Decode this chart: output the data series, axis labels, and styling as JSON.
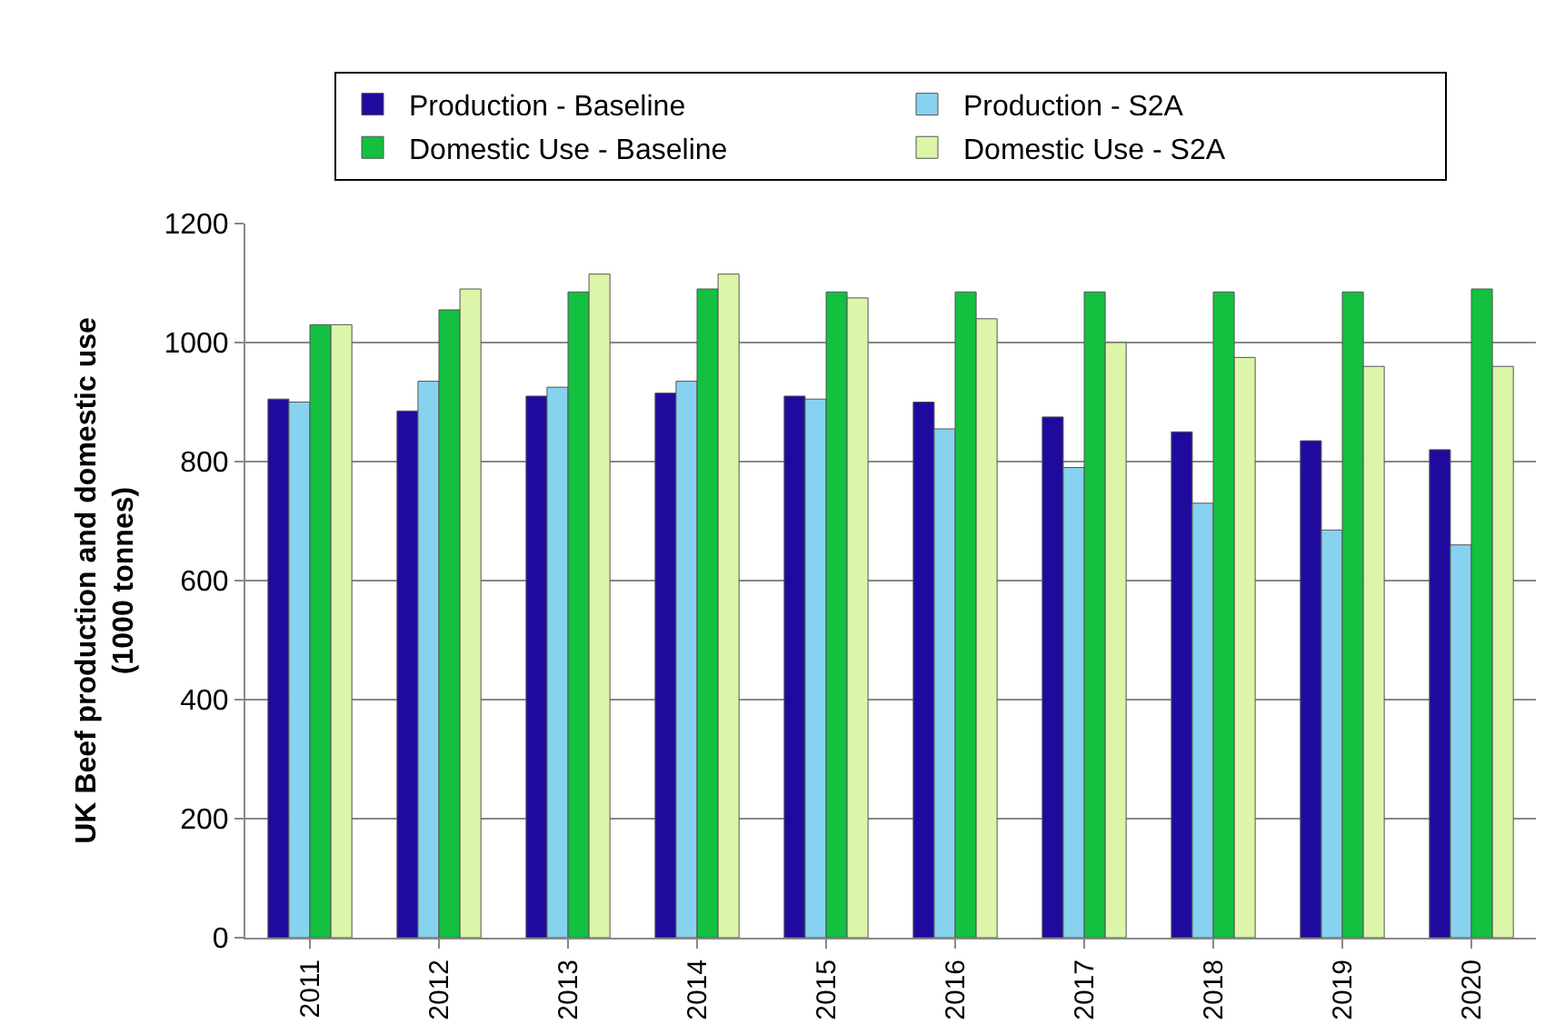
{
  "chart_data": {
    "type": "bar",
    "ylabel": "UK Beef production and domestic use\n(1000 tonnes)",
    "categories": [
      "2011",
      "2012",
      "2013",
      "2014",
      "2015",
      "2016",
      "2017",
      "2018",
      "2019",
      "2020"
    ],
    "series": [
      {
        "name": "Production - Baseline",
        "color": "#1f0a9e",
        "values": [
          905,
          885,
          910,
          915,
          910,
          900,
          875,
          850,
          835,
          820
        ]
      },
      {
        "name": "Production - S2A",
        "color": "#87d3ef",
        "values": [
          900,
          935,
          925,
          935,
          905,
          855,
          790,
          730,
          685,
          660
        ]
      },
      {
        "name": "Domestic Use - Baseline",
        "color": "#13c040",
        "values": [
          1030,
          1055,
          1085,
          1090,
          1085,
          1085,
          1085,
          1085,
          1085,
          1090
        ]
      },
      {
        "name": "Domestic Use - S2A",
        "color": "#dcf5a8",
        "values": [
          1030,
          1090,
          1115,
          1115,
          1075,
          1040,
          1000,
          975,
          960,
          960
        ]
      }
    ],
    "ylim": [
      0,
      1200
    ],
    "yticks": [
      0,
      200,
      400,
      600,
      800,
      1000,
      1200
    ],
    "grid": "y",
    "legend": "top"
  }
}
